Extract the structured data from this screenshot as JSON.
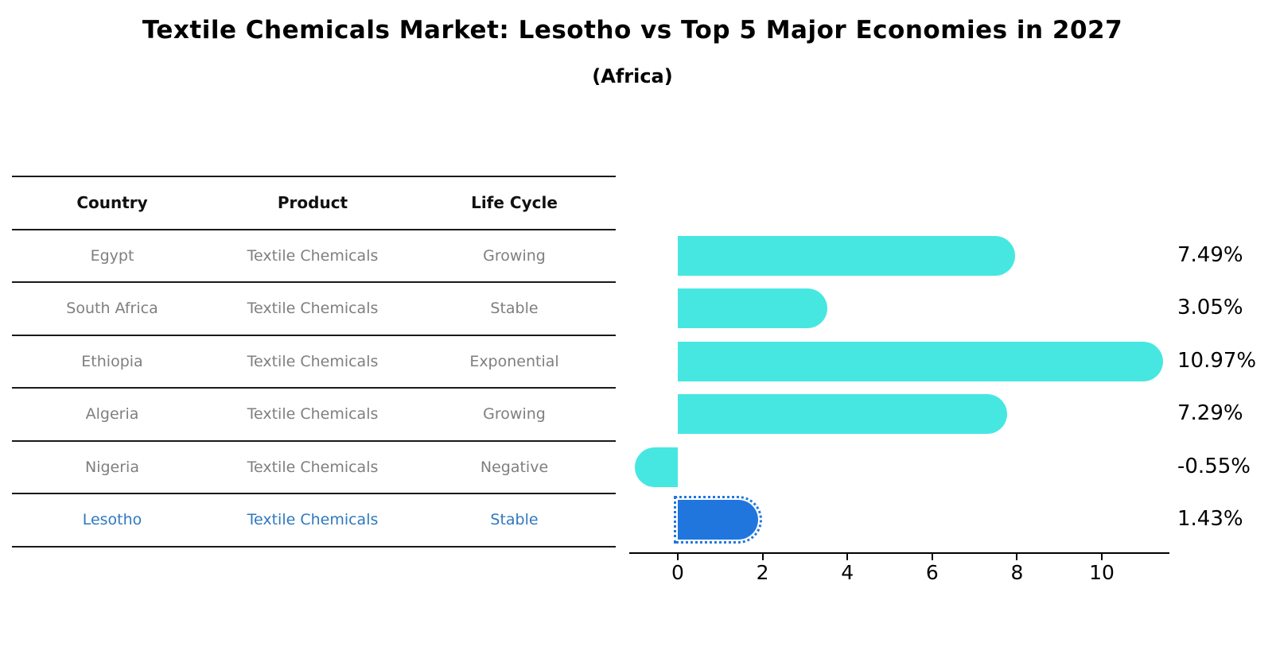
{
  "title": "Textile Chemicals Market: Lesotho vs Top 5 Major Economies in 2027",
  "subtitle": "(Africa)",
  "table": {
    "headers": {
      "country": "Country",
      "product": "Product",
      "life_cycle": "Life Cycle"
    },
    "rows": [
      {
        "country": "Egypt",
        "product": "Textile Chemicals",
        "life_cycle": "Growing"
      },
      {
        "country": "South Africa",
        "product": "Textile Chemicals",
        "life_cycle": "Stable"
      },
      {
        "country": "Ethiopia",
        "product": "Textile Chemicals",
        "life_cycle": "Exponential"
      },
      {
        "country": "Algeria",
        "product": "Textile Chemicals",
        "life_cycle": "Growing"
      },
      {
        "country": "Nigeria",
        "product": "Textile Chemicals",
        "life_cycle": "Negative"
      },
      {
        "country": "Lesotho",
        "product": "Textile Chemicals",
        "life_cycle": "Stable"
      }
    ],
    "highlight_row": "Lesotho"
  },
  "chart_data": {
    "type": "bar",
    "orientation": "horizontal",
    "title": "Textile Chemicals Market: Lesotho vs Top 5 Major Economies in 2027",
    "subtitle": "(Africa)",
    "categories": [
      "Egypt",
      "South Africa",
      "Ethiopia",
      "Algeria",
      "Nigeria",
      "Lesotho"
    ],
    "values": [
      7.49,
      3.05,
      10.97,
      7.29,
      -0.55,
      1.43
    ],
    "value_labels": [
      "7.49%",
      "3.05%",
      "10.97%",
      "7.29%",
      "-0.55%",
      "1.43%"
    ],
    "highlight_index": 5,
    "xticks": [
      0,
      2,
      4,
      6,
      8,
      10
    ],
    "xlim": [
      -1.16,
      11.6
    ],
    "grid": false,
    "legend": false,
    "xlabel": "",
    "ylabel": "",
    "bar_style": "rounded-pill",
    "highlight_bar_style": "dotted-outline"
  },
  "colors": {
    "bar_default": "#47e7e1",
    "bar_highlight": "#2176de",
    "highlight_text": "#2e79be",
    "row_text": "#7f7f7f",
    "header_text": "#111111",
    "axis": "#000000"
  }
}
